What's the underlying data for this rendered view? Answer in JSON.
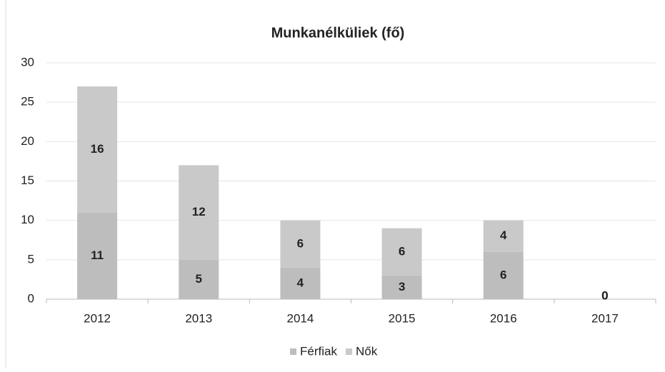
{
  "chart_data": {
    "type": "stacked_bar",
    "title": "Munkanélküliek (fő)",
    "categories": [
      "2012",
      "2013",
      "2014",
      "2015",
      "2016",
      "2017"
    ],
    "series": [
      {
        "name": "Férfiak",
        "color": "#bdbdbd",
        "values": [
          11,
          5,
          4,
          3,
          6,
          0
        ]
      },
      {
        "name": "Nők",
        "color": "#c9c9c9",
        "values": [
          16,
          12,
          6,
          6,
          4,
          0
        ]
      }
    ],
    "ylim": [
      0,
      30
    ],
    "yticks": [
      0,
      5,
      10,
      15,
      20,
      25,
      30
    ],
    "grid": true,
    "legend": "bottom"
  }
}
